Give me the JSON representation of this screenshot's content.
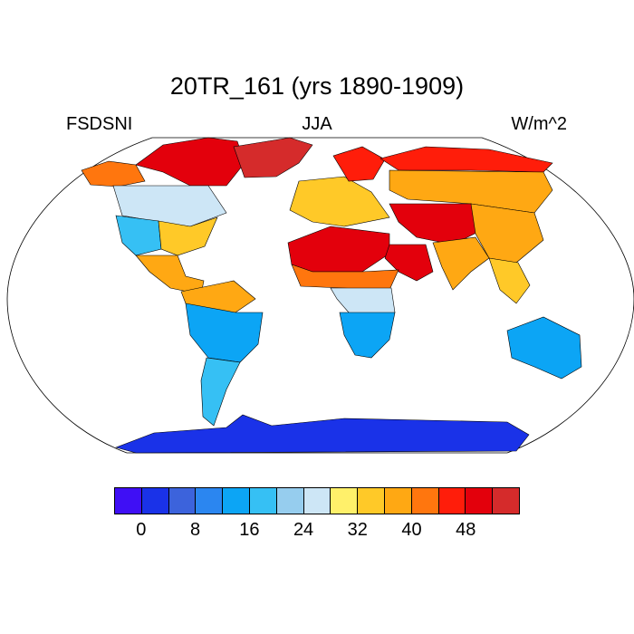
{
  "title": "20TR_161 (yrs 1890-1909)",
  "left_label": "FSDSNI",
  "center_label": "JJA",
  "right_label": "W/m^2",
  "colorbar": {
    "colors": [
      "#3f0ff5",
      "#1a32e8",
      "#3c63dc",
      "#2b86f0",
      "#0ca5f5",
      "#36c0f4",
      "#96cdee",
      "#cde6f6",
      "#fff06a",
      "#ffc928",
      "#ffa813",
      "#ff760e",
      "#ff1d0a",
      "#e3000c",
      "#d52b2b"
    ],
    "tick_labels": [
      "0",
      "8",
      "16",
      "24",
      "32",
      "40",
      "48"
    ]
  },
  "chart_data": {
    "type": "heatmap",
    "title": "20TR_161 (yrs 1890-1909)",
    "variable": "FSDSNI",
    "season": "JJA",
    "units": "W/m^2",
    "projection": "Robinson",
    "levels": [
      -4,
      0,
      4,
      8,
      12,
      16,
      20,
      24,
      28,
      32,
      36,
      40,
      44,
      48,
      52,
      56
    ],
    "region_values": {
      "Antarctica": 2,
      "Greenland": 52,
      "Canadian Arctic": 50,
      "Alaska": 40,
      "Canada": 26,
      "Western United States": 16,
      "Eastern United States": 32,
      "Mexico": 38,
      "Amazon": 36,
      "Brazil": 14,
      "Southern South America": 16,
      "Europe": 32,
      "Scandinavia": 44,
      "Siberia": 36,
      "Northern Siberia": 46,
      "Central Asia": 50,
      "Sahara": 48,
      "Arabian Peninsula": 48,
      "India": 38,
      "China": 36,
      "Sahel": 42,
      "Central Africa": 24,
      "Southern Africa": 12,
      "Southeast Asia": 34,
      "Australia": 14
    }
  }
}
